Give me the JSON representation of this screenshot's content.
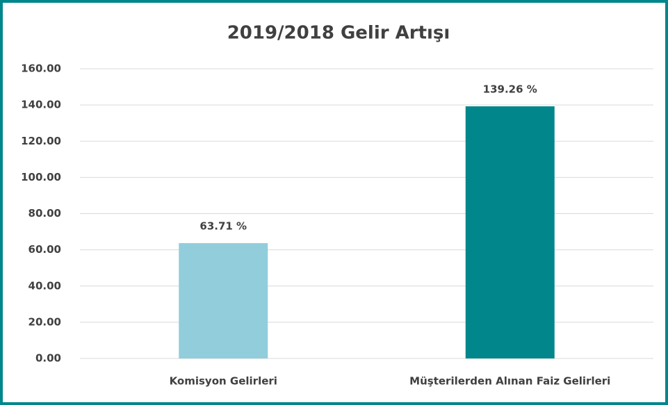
{
  "chart_data": {
    "type": "bar",
    "title": "2019/2018 Gelir Artışı",
    "categories": [
      "Komisyon Gelirleri",
      "Müşterilerden Alınan Faiz Gelirleri"
    ],
    "values": [
      63.71,
      139.26
    ],
    "value_labels": [
      "63.71 %",
      "139.26 %"
    ],
    "colors": [
      "#92cddc",
      "#00868b"
    ],
    "ylim": [
      0,
      160
    ],
    "yticks": [
      {
        "value": 0,
        "label": "0.00"
      },
      {
        "value": 20,
        "label": "20.00"
      },
      {
        "value": 40,
        "label": "40.00"
      },
      {
        "value": 60,
        "label": "60.00"
      },
      {
        "value": 80,
        "label": "80.00"
      },
      {
        "value": 100,
        "label": "100.00"
      },
      {
        "value": 120,
        "label": "120.00"
      },
      {
        "value": 140,
        "label": "140.00"
      },
      {
        "value": 160,
        "label": "160.00"
      }
    ],
    "grid": true
  }
}
